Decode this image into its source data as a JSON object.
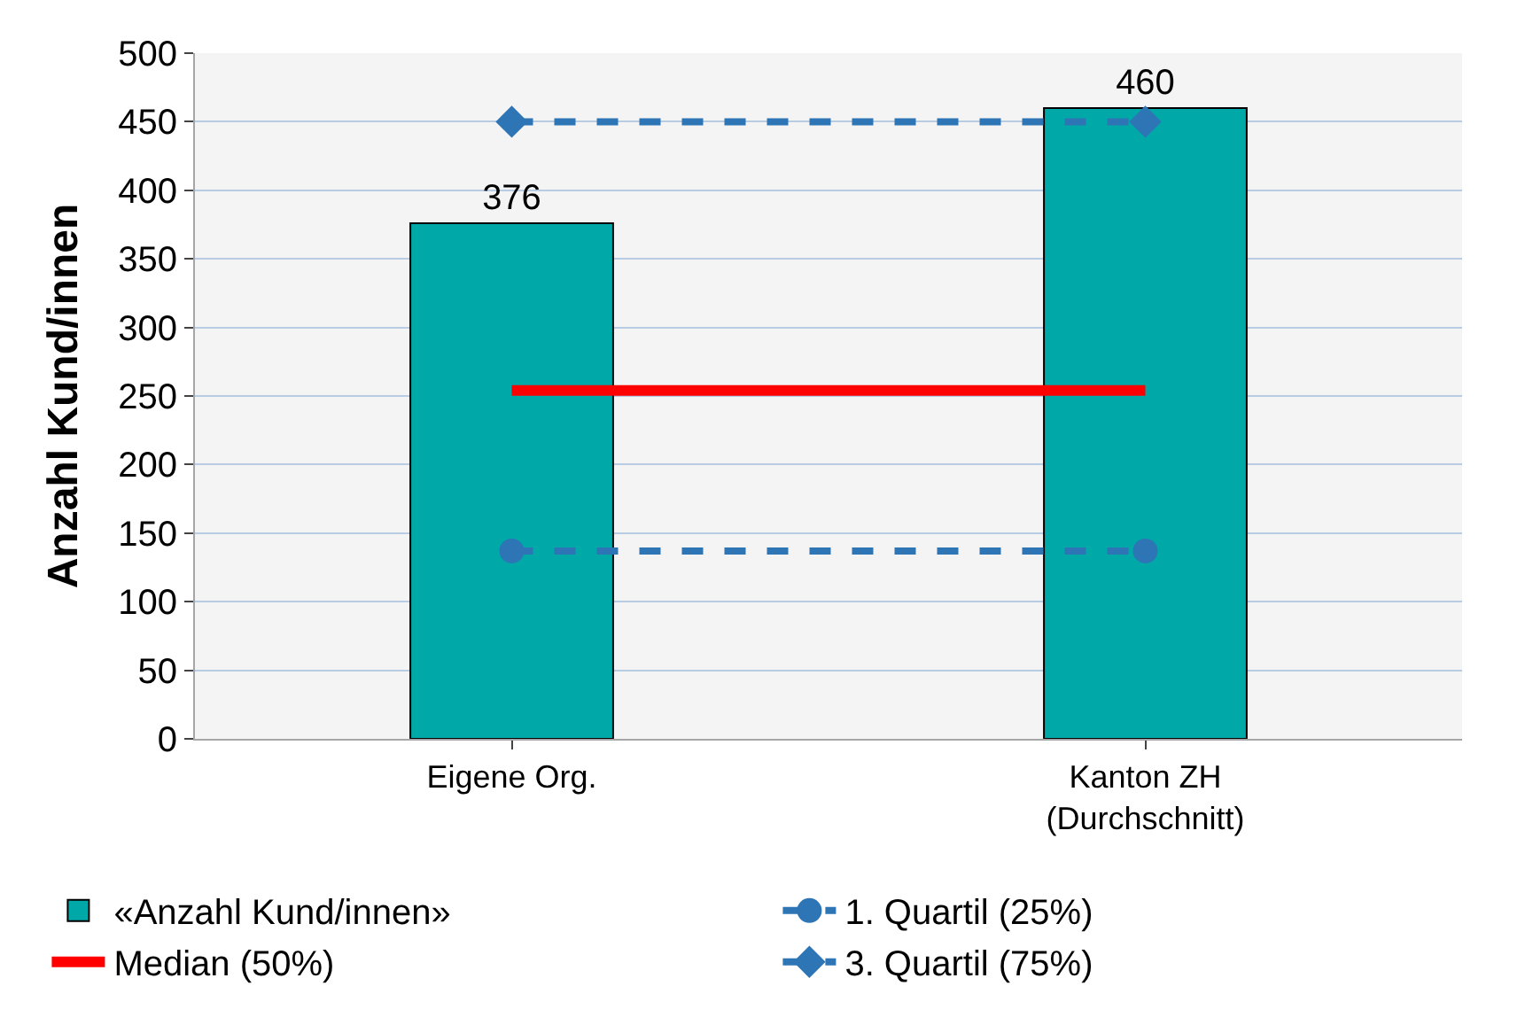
{
  "chart_data": {
    "type": "bar",
    "ylabel": "Anzahl Kund/innen",
    "categories": [
      "Eigene Org.",
      "Kanton ZH\n(Durchschnitt)"
    ],
    "series": [
      {
        "name": "«Anzahl Kund/innen»",
        "color": "#00a8a8",
        "values": [
          376,
          460
        ],
        "value_labels": [
          "376",
          "460"
        ]
      },
      {
        "name": "1. Quartil (25%)",
        "type": "line",
        "color": "#2e75b6",
        "values": [
          137,
          137
        ],
        "marker": "circle",
        "line_style": "dashed"
      },
      {
        "name": "Median (50%)",
        "type": "line",
        "color": "#ff0000",
        "values": [
          254,
          254
        ],
        "marker": "none",
        "line_style": "solid"
      },
      {
        "name": "3. Quartil (75%)",
        "type": "line",
        "color": "#2e75b6",
        "values": [
          450,
          450
        ],
        "marker": "diamond",
        "line_style": "dashed"
      }
    ],
    "ylim": [
      0,
      500
    ],
    "yticks": [
      0,
      50,
      100,
      150,
      200,
      250,
      300,
      350,
      400,
      450,
      500
    ],
    "grid": "y",
    "legend": "bottom"
  }
}
